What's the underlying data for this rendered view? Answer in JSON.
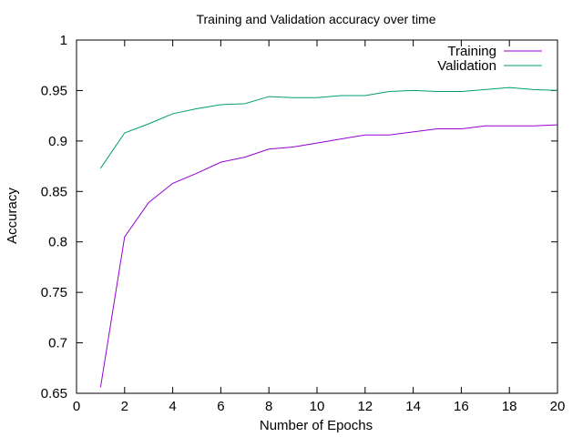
{
  "chart_data": {
    "type": "line",
    "title": "Training and Validation accuracy over time",
    "xlabel": "Number of Epochs",
    "ylabel": "Accuracy",
    "xlim": [
      0,
      20
    ],
    "ylim": [
      0.65,
      1
    ],
    "x_ticks": [
      "0",
      "2",
      "4",
      "6",
      "8",
      "10",
      "12",
      "14",
      "16",
      "18",
      "20"
    ],
    "y_ticks": [
      "0.65",
      "0.7",
      "0.75",
      "0.8",
      "0.85",
      "0.9",
      "0.95",
      "1"
    ],
    "grid": false,
    "legend_position": "top-right",
    "x": [
      1,
      2,
      3,
      4,
      5,
      6,
      7,
      8,
      9,
      10,
      11,
      12,
      13,
      14,
      15,
      16,
      17,
      18,
      19,
      20
    ],
    "series": [
      {
        "name": "Training",
        "color": "#9400d3",
        "values": [
          0.656,
          0.805,
          0.839,
          0.858,
          0.868,
          0.879,
          0.884,
          0.892,
          0.894,
          0.898,
          0.902,
          0.906,
          0.906,
          0.909,
          0.912,
          0.912,
          0.915,
          0.915,
          0.915,
          0.916
        ]
      },
      {
        "name": "Validation",
        "color": "#009e73",
        "values": [
          0.873,
          0.908,
          0.917,
          0.927,
          0.932,
          0.936,
          0.937,
          0.944,
          0.943,
          0.943,
          0.945,
          0.945,
          0.949,
          0.95,
          0.949,
          0.949,
          0.951,
          0.953,
          0.951,
          0.95
        ]
      }
    ]
  }
}
